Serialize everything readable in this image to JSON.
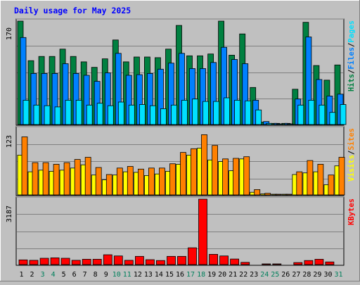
{
  "chart_data": {
    "type": "bar",
    "title": "Daily usage for May 2025",
    "colors": {
      "background": "#c0c0c0",
      "plot": "#c0c0c0",
      "title": "#0000ff",
      "hits": "#008040",
      "files": "#0080ff",
      "pages": "#00e0ff",
      "visits": "#ffff00",
      "sites": "#ff8000",
      "kbytes": "#ff0000",
      "weekday_label": "#000000",
      "weekend_label": "#00805c"
    },
    "categories": [
      "1",
      "2",
      "3",
      "4",
      "5",
      "6",
      "7",
      "8",
      "9",
      "10",
      "11",
      "12",
      "13",
      "14",
      "15",
      "16",
      "17",
      "18",
      "19",
      "20",
      "21",
      "22",
      "23",
      "24",
      "25",
      "26",
      "27",
      "28",
      "29",
      "30",
      "31"
    ],
    "weekend_days": [
      "3",
      "4",
      "10",
      "11",
      "17",
      "18",
      "24",
      "25",
      "31"
    ],
    "panels": [
      {
        "id": "hits-files-pages",
        "ymax_label": "170",
        "ymax": 170,
        "legend": [
          {
            "label": "Hits",
            "color": "#008040"
          },
          {
            "label": "/",
            "color": "#000000"
          },
          {
            "label": "Files",
            "color": "#0080ff"
          },
          {
            "label": "/",
            "color": "#000000"
          },
          {
            "label": "Pages",
            "color": "#00e0ff"
          }
        ],
        "series": [
          {
            "name": "Hits",
            "color": "#008040",
            "values": [
              170,
              105,
              112,
              112,
              124,
              112,
              103,
              94,
              108,
              139,
              103,
              111,
              111,
              110,
              124,
              163,
              113,
              113,
              116,
              170,
              114,
              149,
              61,
              4,
              2,
              2,
              58,
              168,
              97,
              73,
              98
            ]
          },
          {
            "name": "Files",
            "color": "#0080ff",
            "values": [
              143,
              84,
              84,
              84,
              100,
              84,
              81,
              71,
              85,
              117,
              81,
              82,
              84,
              91,
              101,
              117,
              92,
              92,
              102,
              127,
              107,
              100,
              40,
              5,
              2,
              2,
              42,
              144,
              74,
              47,
              50
            ]
          },
          {
            "name": "Pages",
            "color": "#00e0ff",
            "values": [
              40,
              32,
              31,
              29,
              40,
              40,
              32,
              35,
              31,
              37,
              32,
              33,
              31,
              26,
              32,
              40,
              42,
              38,
              38,
              44,
              40,
              39,
              24,
              2,
              1,
              1,
              32,
              40,
              32,
              20,
              33
            ]
          }
        ]
      },
      {
        "id": "visits-sites",
        "ymax_label": "123",
        "ymax": 123,
        "legend": [
          {
            "label": "Visits",
            "color": "#ffff00"
          },
          {
            "label": "/",
            "color": "#000000"
          },
          {
            "label": "Sites",
            "color": "#ff8000"
          }
        ],
        "series": [
          {
            "name": "Visits",
            "color": "#ffff00",
            "values": [
              74,
              43,
              46,
              44,
              46,
              50,
              56,
              37,
              28,
              37,
              43,
              42,
              36,
              39,
              44,
              57,
              74,
              87,
              65,
              62,
              45,
              67,
              5,
              2,
              1,
              1,
              38,
              41,
              43,
              19,
              54
            ]
          },
          {
            "name": "Sites",
            "color": "#ff8000",
            "values": [
              108,
              60,
              60,
              57,
              60,
              66,
              70,
              51,
              38,
              50,
              53,
              48,
              50,
              50,
              58,
              79,
              86,
              112,
              92,
              67,
              68,
              71,
              10,
              3,
              1,
              1,
              43,
              64,
              57,
              37,
              70
            ]
          }
        ]
      },
      {
        "id": "kbytes",
        "ymax_label": "3187",
        "ymax": 3187,
        "legend": [
          {
            "label": "KBytes",
            "color": "#ff0000"
          }
        ],
        "series": [
          {
            "name": "KBytes",
            "color": "#ff0000",
            "values": [
              230,
              210,
              310,
              330,
              310,
              210,
              260,
              260,
              480,
              420,
              210,
              400,
              240,
              200,
              400,
              400,
              820,
              3187,
              500,
              420,
              270,
              110,
              0,
              30,
              20,
              0,
              100,
              200,
              260,
              130,
              0
            ]
          }
        ]
      }
    ]
  }
}
